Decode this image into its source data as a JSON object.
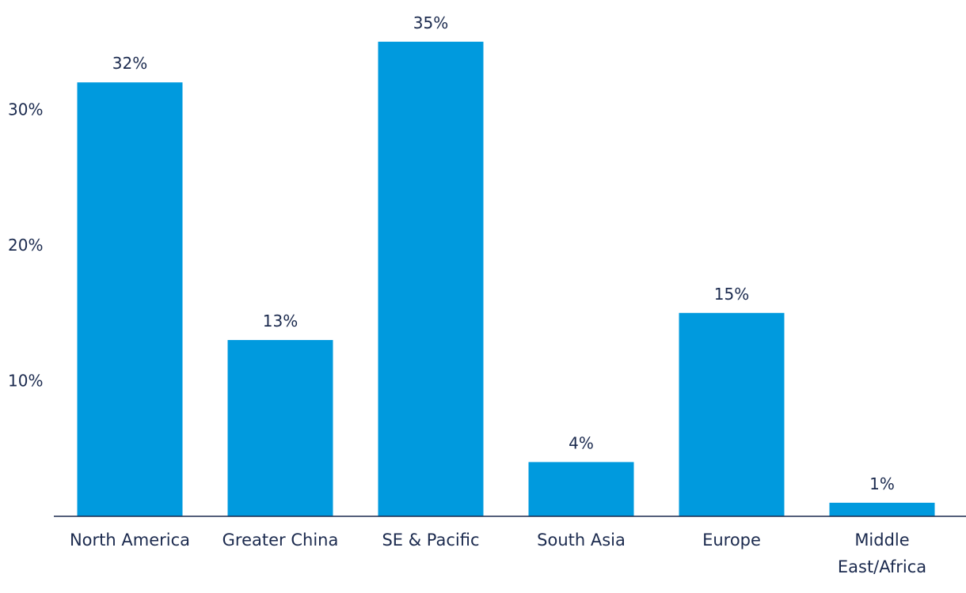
{
  "chart_data": {
    "type": "bar",
    "title": "",
    "xlabel": "",
    "ylabel": "",
    "categories": [
      "North America",
      "Greater China",
      "SE & Pacific",
      "South Asia",
      "Europe",
      "Middle East/Africa"
    ],
    "category_lines": [
      [
        "North America"
      ],
      [
        "Greater China"
      ],
      [
        "SE & Pacific"
      ],
      [
        "South Asia"
      ],
      [
        "Europe"
      ],
      [
        "Middle",
        "East/Africa"
      ]
    ],
    "values": [
      32,
      13,
      35,
      4,
      15,
      1
    ],
    "value_labels": [
      "32%",
      "13%",
      "35%",
      "4%",
      "15%",
      "1%"
    ],
    "ylim": [
      0,
      35
    ],
    "yticks": [
      10,
      20,
      30
    ],
    "ytick_labels": [
      "10%",
      "20%",
      "30%"
    ],
    "grid": false,
    "legend": "none",
    "colors": {
      "bar": "#009ade",
      "text": "#1b2a4e",
      "axis": "#1b2a4e"
    }
  }
}
